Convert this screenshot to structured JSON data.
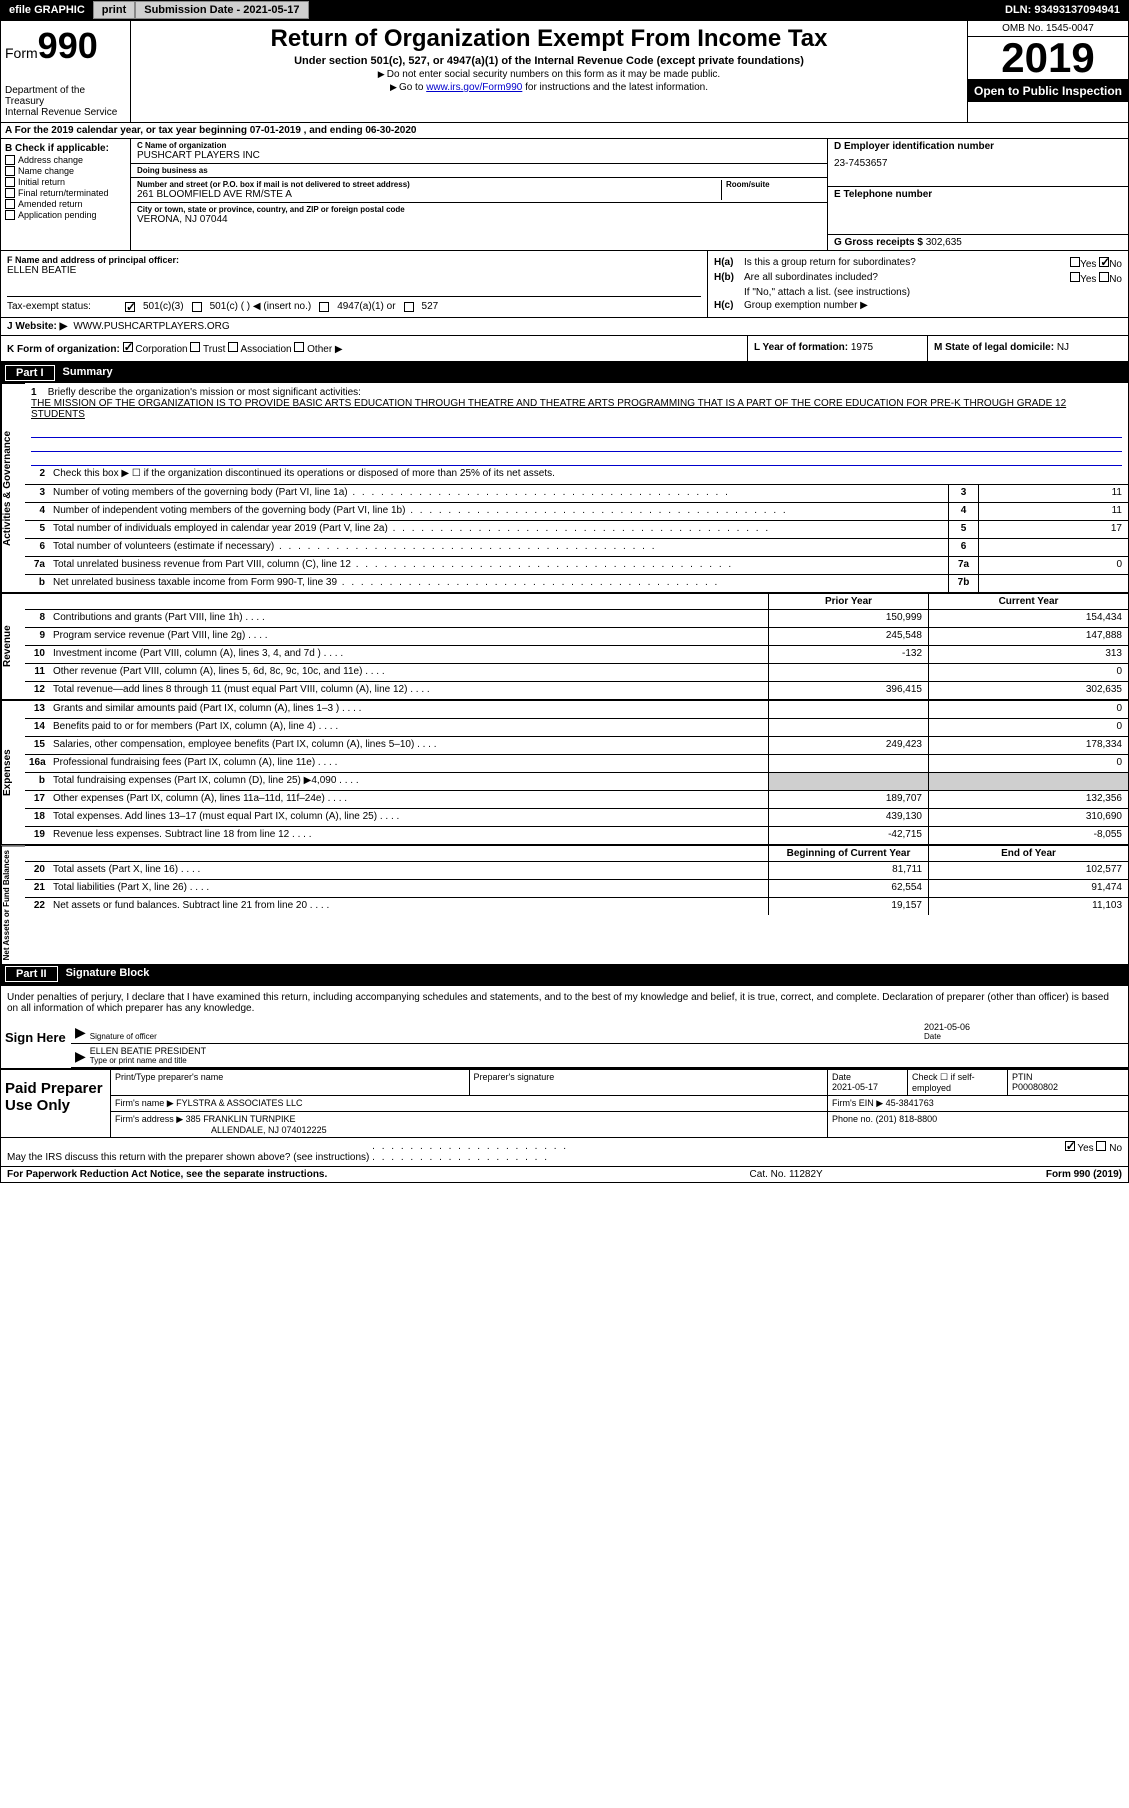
{
  "topbar": {
    "efile": "efile GRAPHIC",
    "print": "print",
    "submission_label": "Submission Date - 2021-05-17",
    "dln": "DLN: 93493137094941"
  },
  "header": {
    "form_label": "Form",
    "form_num": "990",
    "dept": "Department of the Treasury\nInternal Revenue Service",
    "title": "Return of Organization Exempt From Income Tax",
    "subtitle": "Under section 501(c), 527, or 4947(a)(1) of the Internal Revenue Code (except private foundations)",
    "note1": "Do not enter social security numbers on this form as it may be made public.",
    "note2_pre": "Go to ",
    "note2_link": "www.irs.gov/Form990",
    "note2_post": " for instructions and the latest information.",
    "omb": "OMB No. 1545-0047",
    "year": "2019",
    "open_public": "Open to Public Inspection"
  },
  "period": "For the 2019 calendar year, or tax year beginning 07-01-2019    , and ending 06-30-2020",
  "check_b": {
    "label": "B Check if applicable:",
    "items": [
      "Address change",
      "Name change",
      "Initial return",
      "Final return/terminated",
      "Amended return",
      "Application pending"
    ]
  },
  "block_c": {
    "name_lbl": "C Name of organization",
    "name": "PUSHCART PLAYERS INC",
    "dba_lbl": "Doing business as",
    "dba": "",
    "addr_lbl": "Number and street (or P.O. box if mail is not delivered to street address)",
    "room_lbl": "Room/suite",
    "addr": "261 BLOOMFIELD AVE RM/STE A",
    "city_lbl": "City or town, state or province, country, and ZIP or foreign postal code",
    "city": "VERONA, NJ  07044"
  },
  "block_de": {
    "ein_lbl": "D Employer identification number",
    "ein": "23-7453657",
    "phone_lbl": "E Telephone number",
    "phone": "",
    "gross_lbl": "G Gross receipts $",
    "gross": "302,635"
  },
  "block_f": {
    "lbl": "F  Name and address of principal officer:",
    "name": "ELLEN BEATIE"
  },
  "block_h": {
    "ha": "Is this a group return for subordinates?",
    "ha_no": true,
    "hb": "Are all subordinates included?",
    "hb_note": "If \"No,\" attach a list. (see instructions)",
    "hc_lbl": "Group exemption number"
  },
  "tax_status": {
    "lbl": "Tax-exempt status:",
    "c3": "501(c)(3)",
    "c_insert": "501(c) (  ) ◀ (insert no.)",
    "c4947": "4947(a)(1) or",
    "c527": "527"
  },
  "website": {
    "lbl": "J    Website: ▶",
    "url": "WWW.PUSHCARTPLAYERS.ORG"
  },
  "block_k": {
    "lbl": "K Form of organization:",
    "corp": "Corporation",
    "trust": "Trust",
    "assn": "Association",
    "other": "Other ▶"
  },
  "block_l": {
    "lbl": "L Year of formation:",
    "val": "1975"
  },
  "block_m": {
    "lbl": "M State of legal domicile:",
    "val": "NJ"
  },
  "part1": {
    "label": "Part I",
    "title": "Summary"
  },
  "mission": {
    "num": "1",
    "lbl": "Briefly describe the organization's mission or most significant activities:",
    "text": "THE MISSION OF THE ORGANIZATION IS TO PROVIDE BASIC ARTS EDUCATION THROUGH THEATRE AND THEATRE ARTS PROGRAMMING THAT IS A PART OF THE CORE EDUCATION FOR PRE-K THROUGH GRADE 12 STUDENTS"
  },
  "sidelabels": {
    "ag": "Activities & Governance",
    "rev": "Revenue",
    "exp": "Expenses",
    "net": "Net Assets or Fund Balances"
  },
  "lines_ag": [
    {
      "num": "2",
      "desc": "Check this box ▶ ☐  if the organization discontinued its operations or disposed of more than 25% of its net assets."
    },
    {
      "num": "3",
      "desc": "Number of voting members of the governing body (Part VI, line 1a)",
      "box": "3",
      "val": "11"
    },
    {
      "num": "4",
      "desc": "Number of independent voting members of the governing body (Part VI, line 1b)",
      "box": "4",
      "val": "11"
    },
    {
      "num": "5",
      "desc": "Total number of individuals employed in calendar year 2019 (Part V, line 2a)",
      "box": "5",
      "val": "17"
    },
    {
      "num": "6",
      "desc": "Total number of volunteers (estimate if necessary)",
      "box": "6",
      "val": ""
    },
    {
      "num": "7a",
      "desc": "Total unrelated business revenue from Part VIII, column (C), line 12",
      "box": "7a",
      "val": "0"
    },
    {
      "num": "b",
      "desc": "Net unrelated business taxable income from Form 990-T, line 39",
      "box": "7b",
      "val": ""
    }
  ],
  "col_headers": {
    "py": "Prior Year",
    "cy": "Current Year"
  },
  "lines_rev": [
    {
      "num": "8",
      "desc": "Contributions and grants (Part VIII, line 1h)",
      "py": "150,999",
      "cy": "154,434"
    },
    {
      "num": "9",
      "desc": "Program service revenue (Part VIII, line 2g)",
      "py": "245,548",
      "cy": "147,888"
    },
    {
      "num": "10",
      "desc": "Investment income (Part VIII, column (A), lines 3, 4, and 7d )",
      "py": "-132",
      "cy": "313"
    },
    {
      "num": "11",
      "desc": "Other revenue (Part VIII, column (A), lines 5, 6d, 8c, 9c, 10c, and 11e)",
      "py": "",
      "cy": "0"
    },
    {
      "num": "12",
      "desc": "Total revenue—add lines 8 through 11 (must equal Part VIII, column (A), line 12)",
      "py": "396,415",
      "cy": "302,635"
    }
  ],
  "lines_exp": [
    {
      "num": "13",
      "desc": "Grants and similar amounts paid (Part IX, column (A), lines 1–3 )",
      "py": "",
      "cy": "0"
    },
    {
      "num": "14",
      "desc": "Benefits paid to or for members (Part IX, column (A), line 4)",
      "py": "",
      "cy": "0"
    },
    {
      "num": "15",
      "desc": "Salaries, other compensation, employee benefits (Part IX, column (A), lines 5–10)",
      "py": "249,423",
      "cy": "178,334"
    },
    {
      "num": "16a",
      "desc": "Professional fundraising fees (Part IX, column (A), line 11e)",
      "py": "",
      "cy": "0"
    },
    {
      "num": "b",
      "desc": "Total fundraising expenses (Part IX, column (D), line 25) ▶4,090",
      "py": "shaded",
      "cy": "shaded"
    },
    {
      "num": "17",
      "desc": "Other expenses (Part IX, column (A), lines 11a–11d, 11f–24e)",
      "py": "189,707",
      "cy": "132,356"
    },
    {
      "num": "18",
      "desc": "Total expenses. Add lines 13–17 (must equal Part IX, column (A), line 25)",
      "py": "439,130",
      "cy": "310,690"
    },
    {
      "num": "19",
      "desc": "Revenue less expenses. Subtract line 18 from line 12",
      "py": "-42,715",
      "cy": "-8,055"
    }
  ],
  "col_headers2": {
    "py": "Beginning of Current Year",
    "cy": "End of Year"
  },
  "lines_net": [
    {
      "num": "20",
      "desc": "Total assets (Part X, line 16)",
      "py": "81,711",
      "cy": "102,577"
    },
    {
      "num": "21",
      "desc": "Total liabilities (Part X, line 26)",
      "py": "62,554",
      "cy": "91,474"
    },
    {
      "num": "22",
      "desc": "Net assets or fund balances. Subtract line 21 from line 20",
      "py": "19,157",
      "cy": "11,103"
    }
  ],
  "part2": {
    "label": "Part II",
    "title": "Signature Block"
  },
  "sig_declaration": "Under penalties of perjury, I declare that I have examined this return, including accompanying schedules and statements, and to the best of my knowledge and belief, it is true, correct, and complete. Declaration of preparer (other than officer) is based on all information of which preparer has any knowledge.",
  "sig": {
    "here": "Sign Here",
    "officer_lbl": "Signature of officer",
    "date_lbl": "Date",
    "date": "2021-05-06",
    "name": "ELLEN BEATIE  PRESIDENT",
    "name_lbl": "Type or print name and title"
  },
  "prep": {
    "label": "Paid Preparer Use Only",
    "name_lbl": "Print/Type preparer's name",
    "sig_lbl": "Preparer's signature",
    "date_lbl": "Date",
    "date": "2021-05-17",
    "check_lbl": "Check ☐ if self-employed",
    "ptin_lbl": "PTIN",
    "ptin": "P00080802",
    "firm_name_lbl": "Firm's name     ▶",
    "firm_name": "FYLSTRA & ASSOCIATES LLC",
    "firm_ein_lbl": "Firm's EIN ▶",
    "firm_ein": "45-3841763",
    "firm_addr_lbl": "Firm's address ▶",
    "firm_addr1": "385 FRANKLIN TURNPIKE",
    "firm_addr2": "ALLENDALE, NJ  074012225",
    "phone_lbl": "Phone no.",
    "phone": "(201) 818-8800"
  },
  "discuss": "May the IRS discuss this return with the preparer shown above? (see instructions)",
  "bottom": {
    "left": "For Paperwork Reduction Act Notice, see the separate instructions.",
    "mid": "Cat. No. 11282Y",
    "right": "Form 990 (2019)"
  }
}
